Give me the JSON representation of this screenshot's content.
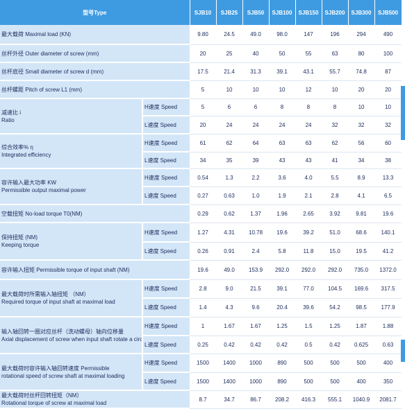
{
  "header": {
    "model_label": "型号Type",
    "models": [
      "SJB10",
      "SJB25",
      "SJB50",
      "SJB100",
      "SJB150",
      "SJB200",
      "SJB300",
      "SJB500"
    ]
  },
  "rows": [
    {
      "label": "最大载荷 Maximal load          (KN)",
      "values": [
        "9.80",
        "24.5",
        "49.0",
        "98.0",
        "147",
        "196",
        "294",
        "490"
      ]
    },
    {
      "label": "丝杆外径 Outer diameter of screw        (mm)",
      "values": [
        "20",
        "25",
        "40",
        "50",
        "55",
        "63",
        "80",
        "100"
      ]
    },
    {
      "label": "丝杆底径 Small diameter of screw d       (mm)",
      "values": [
        "17.5",
        "21.4",
        "31.3",
        "39.1",
        "43.1",
        "55.7",
        "74.8",
        "87"
      ]
    },
    {
      "label": "丝杆螺距 Pitch of screw         L1  (mm)",
      "values": [
        "5",
        "10",
        "10",
        "10",
        "12",
        "10",
        "20",
        "20"
      ]
    }
  ],
  "groups": [
    {
      "line1": "减速比 i",
      "line2": "Ratio",
      "h_label": "H速度 Speed",
      "h_values": [
        "5",
        "6",
        "6",
        "8",
        "8",
        "8",
        "10",
        "10"
      ],
      "l_label": "L速度 Speed",
      "l_values": [
        "20",
        "24",
        "24",
        "24",
        "24",
        "32",
        "32",
        "32"
      ]
    },
    {
      "line1": "综合效率% η",
      "line2": "Integrated efficiency",
      "h_label": "H速度 Speed",
      "h_values": [
        "61",
        "62",
        "64",
        "63",
        "63",
        "62",
        "56",
        "60"
      ],
      "l_label": "L速度 Speed",
      "l_values": [
        "34",
        "35",
        "39",
        "43",
        "43",
        "41",
        "34",
        "38"
      ]
    },
    {
      "line1": "容许输入最大功率 KW",
      "line2": "Permissible output maximal power",
      "h_label": "H速度 Speed",
      "h_values": [
        "0.54",
        "1.3",
        "2.2",
        "3.6",
        "4.0",
        "5.5",
        "8.9",
        "13.3"
      ],
      "l_label": "L速度 Speed",
      "l_values": [
        "0.27",
        "0.63",
        "1.0",
        "1.9",
        "2.1",
        "2.8",
        "4.1",
        "6.5"
      ]
    }
  ],
  "no_load": {
    "label": "空载扭矩 No-load torque          T0(NM)",
    "values": [
      "0.29",
      "0.62",
      "1.37",
      "1.96",
      "2.65",
      "3.92",
      "9.81",
      "19.6"
    ]
  },
  "holding": {
    "line1": "保持扭矩  (NM)",
    "line2": "Keeping torque",
    "h_label": "H速度 Speed",
    "h_values": [
      "1.27",
      "4.31",
      "10.78",
      "19.6",
      "39.2",
      "51.0",
      "68.6",
      "140.1"
    ],
    "l_label": "L速度 Speed",
    "l_values": [
      "0.26",
      "0.91",
      "2.4",
      "5.8",
      "11.8",
      "15.0",
      "19.5",
      "41.2"
    ]
  },
  "input_torque": {
    "label": "容许输入扭矩 Permissible torque of input shaft  (NM)",
    "values": [
      "19.6",
      "49.0",
      "153.9",
      "292.0",
      "292.0",
      "292.0",
      "735.0",
      "1372.0"
    ]
  },
  "groups2": [
    {
      "line1": "最大载荷时所需输入轴扭矩 （NM）",
      "line2": "Required  torque  of input shaft  at maximal load",
      "h_label": "H速度 Speed",
      "h_values": [
        "2.8",
        "9.0",
        "21.5",
        "39.1",
        "77.0",
        "104.5",
        "169.6",
        "317.5"
      ],
      "l_label": "L速度 Speed",
      "l_values": [
        "1.4",
        "4.3",
        "9.6",
        "20.4",
        "39.6",
        "54.2",
        "98.5",
        "177.9"
      ]
    },
    {
      "line1": "输入轴回转一圈对应丝杆（洗动螺母）轴向位移量",
      "line2": "Axial displacement of screw when input shaft rotate a circle.",
      "h_label": "H速度  Speed",
      "h_values": [
        "1",
        "1.67",
        "1.67",
        "1.25",
        "1.5",
        "1.25",
        "1.87",
        "1.88"
      ],
      "l_label": "L速度 Speed",
      "l_values": [
        "0.25",
        "0.42",
        "0.42",
        "0.42",
        "0.5",
        "0.42",
        "0.625",
        "0.63"
      ]
    },
    {
      "line1": "最大载荷时容许输入轴回转速度 Permissible",
      "line2": "rotational speed of screw shaft at maximal loading",
      "h_label": "H速度 Speed",
      "h_values": [
        "1500",
        "1400",
        "1000",
        "890",
        "500",
        "500",
        "500",
        "400"
      ],
      "l_label": "L速度 Speed",
      "l_values": [
        "1500",
        "1400",
        "1000",
        "890",
        "500",
        "500",
        "400",
        "350"
      ]
    }
  ],
  "last": {
    "line1": "最大载荷时丝杆回转扭矩（NM）",
    "line2": "Rotational torque of screw at maximal load",
    "values": [
      "8.7",
      "34.7",
      "86.7",
      "208.2",
      "416.3",
      "555.1",
      "1040.9",
      "2081.7"
    ]
  }
}
